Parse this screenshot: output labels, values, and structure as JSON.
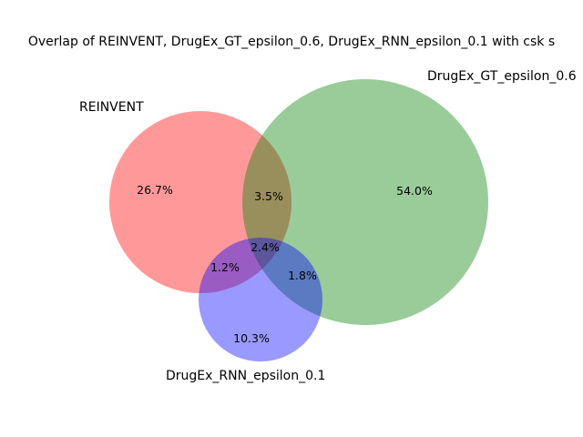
{
  "title": "Overlap of REINVENT, DrugEx_GT_epsilon_0.6, DrugEx_RNN_epsilon_0.1 with csk s",
  "sets": [
    {
      "name": "REINVENT",
      "color": "#ff0000",
      "label": "REINVENT"
    },
    {
      "name": "DrugEx_GT_epsilon_0.6",
      "color": "#008000",
      "label": "DrugEx_GT_epsilon_0.6"
    },
    {
      "name": "DrugEx_RNN_epsilon_0.1",
      "color": "#0000ff",
      "label": "DrugEx_RNN_epsilon_0.1"
    }
  ],
  "regions": {
    "reinvent_only": "26.7%",
    "gt_only": "54.0%",
    "rnn_only": "10.3%",
    "reinvent_gt": "3.5%",
    "reinvent_rnn": "1.2%",
    "gt_rnn": "1.8%",
    "all_three": "2.4%"
  }
}
